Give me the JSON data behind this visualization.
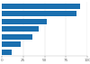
{
  "values": [
    92,
    87,
    53,
    43,
    36,
    22,
    12
  ],
  "bar_color": "#1a6faf",
  "background_color": "#ffffff",
  "figsize": [
    1.0,
    0.71
  ],
  "dpi": 100,
  "tick_label_fontsize": 3.0,
  "x_ticks": [
    0,
    25,
    50,
    75,
    100
  ],
  "x_tick_labels": [
    "0",
    "25",
    "50",
    "75",
    "100"
  ],
  "xlim": [
    0,
    100
  ],
  "bar_height": 0.72
}
